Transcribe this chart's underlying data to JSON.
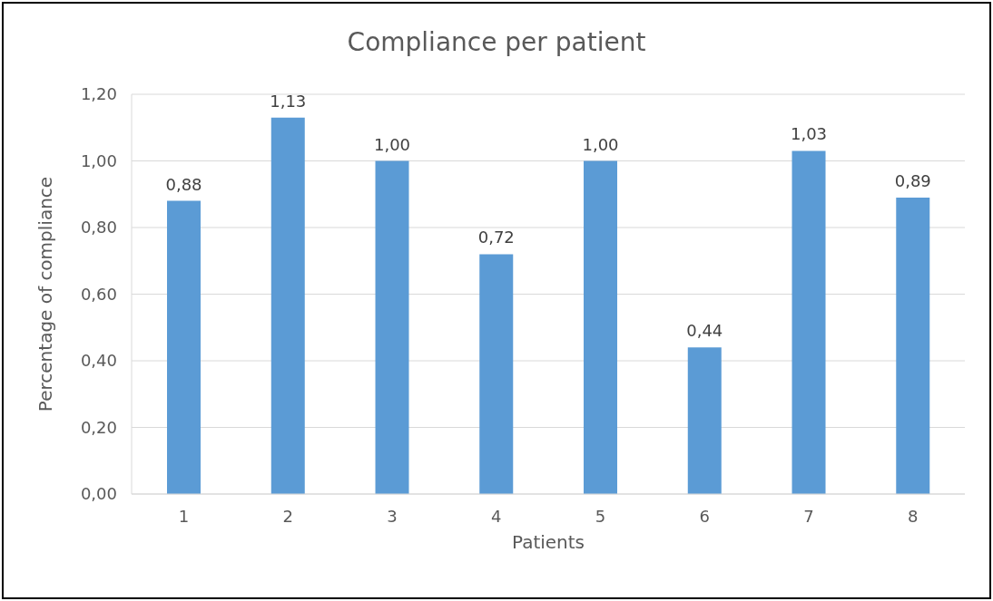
{
  "chart_data": {
    "type": "bar",
    "title": "Compliance per patient",
    "xlabel": "Patients",
    "ylabel": "Percentage of compliance",
    "categories": [
      "1",
      "2",
      "3",
      "4",
      "5",
      "6",
      "7",
      "8"
    ],
    "values": [
      0.88,
      1.13,
      1.0,
      0.72,
      1.0,
      0.44,
      1.03,
      0.89
    ],
    "value_labels": [
      "0,88",
      "1,13",
      "1,00",
      "0,72",
      "1,00",
      "0,44",
      "1,03",
      "0,89"
    ],
    "color": "#5b9bd5",
    "ylim": [
      0,
      1.2
    ],
    "yticks": [
      {
        "value": 0,
        "label": "0,00"
      },
      {
        "value": 0.2,
        "label": "0,20"
      },
      {
        "value": 0.4,
        "label": "0,40"
      },
      {
        "value": 0.6,
        "label": "0,60"
      },
      {
        "value": 0.8,
        "label": "0,80"
      },
      {
        "value": 1.0,
        "label": "1,00"
      },
      {
        "value": 1.2,
        "label": "1,20"
      }
    ],
    "grid": "y",
    "legend": false
  }
}
